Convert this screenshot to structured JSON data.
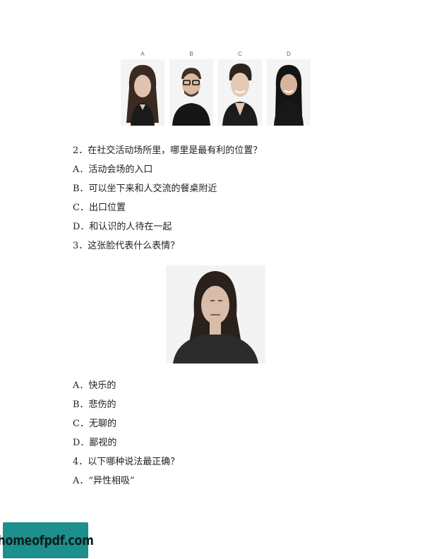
{
  "photo_labels": [
    "A",
    "B",
    "C",
    "D"
  ],
  "q2": {
    "question": "2．在社交活动场所里，哪里是最有利的位置？",
    "options": [
      "A．活动会场的入口",
      "B．可以坐下来和人交流的餐桌附近",
      "C．出口位置",
      "D．和认识的人待在一起"
    ]
  },
  "q3": {
    "question": "3．这张脸代表什么表情？",
    "options": [
      "A．快乐的",
      "B．悲伤的",
      "C．无聊的",
      "D．鄙视的"
    ]
  },
  "q4": {
    "question": "4．以下哪种说法最正确？",
    "options": [
      "A．“异性相吸”"
    ]
  },
  "watermark": "homeofpdf.com"
}
